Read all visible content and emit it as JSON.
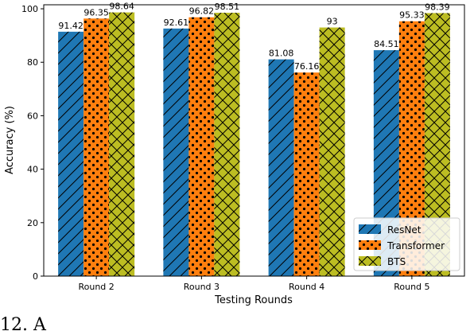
{
  "chart_data": {
    "type": "bar",
    "xlabel": "Testing Rounds",
    "ylabel": "Accuracy (%)",
    "ylim": [
      0,
      100
    ],
    "yticks": [
      0,
      20,
      40,
      60,
      80,
      100
    ],
    "categories": [
      "Round 2",
      "Round 3",
      "Round 4",
      "Round 5"
    ],
    "series": [
      {
        "name": "ResNet",
        "values": [
          91.42,
          92.61,
          81.08,
          84.51
        ],
        "labels": [
          "91.42",
          "92.61",
          "81.08",
          "84.51"
        ],
        "color": "#1f77b4",
        "hatch": "diagonal"
      },
      {
        "name": "Transformer",
        "values": [
          96.35,
          96.82,
          76.16,
          95.33
        ],
        "labels": [
          "96.35",
          "96.82",
          "76.16",
          "95.33"
        ],
        "color": "#ff7f0e",
        "hatch": "dots"
      },
      {
        "name": "BTS",
        "values": [
          98.64,
          98.51,
          93,
          98.39
        ],
        "labels": [
          "98.64",
          "98.51",
          "93",
          "98.39"
        ],
        "color": "#bcbd22",
        "hatch": "crosshatch"
      }
    ],
    "legend": "bottom-right",
    "grid": false
  },
  "caption": "12. A"
}
